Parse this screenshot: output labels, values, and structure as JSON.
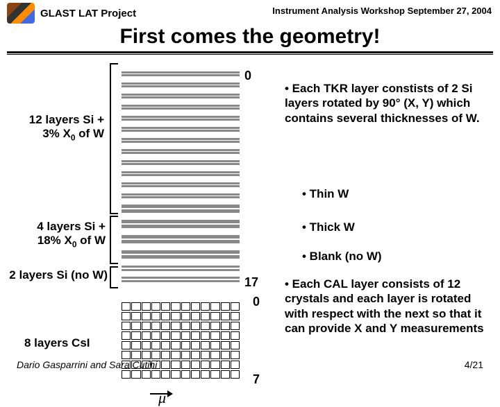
{
  "header": {
    "project": "GLAST LAT Project",
    "workshop": "Instrument Analysis Workshop  September  27, 2004",
    "title": "First comes the geometry!"
  },
  "tkr": {
    "label1_a": "12 layers Si +",
    "label1_b": "3% X",
    "label1_sub": "0",
    "label1_c": " of W",
    "label2_a": "4 layers Si +",
    "label2_b": "18% X",
    "label2_sub": "0",
    "label2_c": "  of W",
    "label3": "2 layers Si (no W)",
    "top_num": "0",
    "bot_num": "17",
    "thin_pairs": 12,
    "thick_pairs": 4,
    "blank_pairs": 2
  },
  "cal": {
    "label": "8 layers CsI",
    "top_num": "0",
    "bot_num": "7",
    "rows": 8,
    "cols": 12
  },
  "bullets": {
    "b1": "•  Each TKR layer constists of  2 Si layers rotated by 90° (X, Y) which contains several thicknesses of W.",
    "b2": "• Thin W",
    "b3": "• Thick W",
    "b4": "• Blank (no W)",
    "b5": "•   Each CAL layer consists of 12 crystals and each layer is rotated with respect with the next so that it can provide X and Y measurements"
  },
  "mu": "μ",
  "footer": {
    "authors": "Dario Gasparrini and Sara Cutini",
    "page": "4/21"
  }
}
